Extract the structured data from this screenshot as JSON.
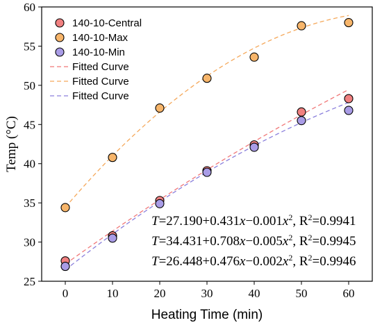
{
  "chart_data": {
    "type": "scatter",
    "xlabel": "Heating Time (min)",
    "ylabel": "Temp (°C)",
    "xlim": [
      -5,
      65
    ],
    "ylim": [
      25,
      60
    ],
    "xticks": [
      0,
      10,
      20,
      30,
      40,
      50,
      60
    ],
    "yticks": [
      25,
      30,
      35,
      40,
      45,
      50,
      55,
      60
    ],
    "legend_position": "top-left",
    "series": [
      {
        "name": "140-10-Central",
        "color": "#f08080",
        "x": [
          0,
          10,
          20,
          30,
          40,
          50,
          60
        ],
        "y": [
          27.6,
          30.8,
          35.3,
          39.1,
          42.4,
          46.6,
          48.3
        ]
      },
      {
        "name": "140-10-Max",
        "color": "#f7b56a",
        "x": [
          0,
          10,
          20,
          30,
          40,
          50,
          60
        ],
        "y": [
          34.4,
          40.8,
          47.1,
          50.9,
          53.6,
          57.6,
          58.0
        ]
      },
      {
        "name": "140-10-Min",
        "color": "#a99ce6",
        "x": [
          0,
          10,
          20,
          30,
          40,
          50,
          60
        ],
        "y": [
          26.9,
          30.5,
          34.9,
          38.9,
          42.1,
          45.5,
          46.8
        ]
      }
    ],
    "fits": [
      {
        "name": "Fitted Curve",
        "color": "#f07878",
        "coef": [
          27.19,
          0.431,
          -0.001
        ]
      },
      {
        "name": "Fitted Curve",
        "color": "#f5a85a",
        "coef": [
          34.431,
          0.708,
          -0.005
        ]
      },
      {
        "name": "Fitted Curve",
        "color": "#8a7fdc",
        "coef": [
          26.448,
          0.476,
          -0.002
        ]
      }
    ],
    "equations": [
      {
        "a": "27.190",
        "b": "+0.431",
        "c": "−0.001",
        "r2": "0.9941"
      },
      {
        "a": "34.431",
        "b": "+0.708",
        "c": "−0.005",
        "r2": "0.9945"
      },
      {
        "a": "26.448",
        "b": "+0.476",
        "c": "−0.002",
        "r2": "0.9946"
      }
    ]
  }
}
